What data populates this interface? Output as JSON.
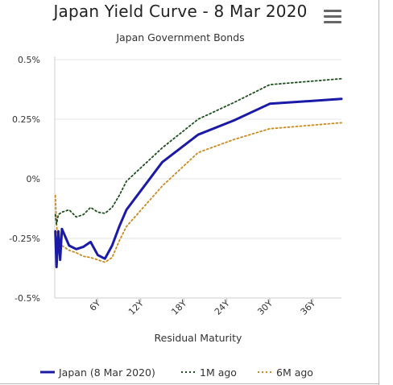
{
  "menu_icon": "hamburger-menu-icon",
  "chart_data": {
    "type": "line",
    "title": "Japan Yield Curve - 8 Mar 2020",
    "subtitle": "Japan Government Bonds",
    "xlabel": "Residual Maturity",
    "ylabel": "",
    "x_unit": "years",
    "xlim": [
      0,
      40
    ],
    "ylim": [
      -0.5,
      0.5
    ],
    "y_ticks": [
      {
        "value": 0.5,
        "label": "0.5%"
      },
      {
        "value": 0.25,
        "label": "0.25%"
      },
      {
        "value": 0,
        "label": "0%"
      },
      {
        "value": -0.25,
        "label": "-0.25%"
      },
      {
        "value": -0.5,
        "label": "-0.5%"
      }
    ],
    "x_ticks": [
      {
        "value": 6,
        "label": "6Y"
      },
      {
        "value": 12,
        "label": "12Y"
      },
      {
        "value": 18,
        "label": "18Y"
      },
      {
        "value": 24,
        "label": "24Y"
      },
      {
        "value": 30,
        "label": "30Y"
      },
      {
        "value": 36,
        "label": "36Y"
      }
    ],
    "grid": "horizontal",
    "legend": "bottom",
    "series": [
      {
        "name": "Japan (8 Mar 2020)",
        "color": "#1a1aa6",
        "style": "solid",
        "points": [
          [
            0.08,
            -0.22
          ],
          [
            0.25,
            -0.37
          ],
          [
            0.5,
            -0.22
          ],
          [
            0.75,
            -0.34
          ],
          [
            1,
            -0.21
          ],
          [
            2,
            -0.28
          ],
          [
            3,
            -0.295
          ],
          [
            4,
            -0.285
          ],
          [
            5,
            -0.265
          ],
          [
            6,
            -0.32
          ],
          [
            7,
            -0.335
          ],
          [
            8,
            -0.28
          ],
          [
            9,
            -0.2
          ],
          [
            10,
            -0.13
          ],
          [
            15,
            0.07
          ],
          [
            20,
            0.185
          ],
          [
            25,
            0.245
          ],
          [
            30,
            0.315
          ],
          [
            40,
            0.335
          ]
        ]
      },
      {
        "name": "1M ago",
        "color": "#1e4f1e",
        "style": "dotted",
        "points": [
          [
            0.08,
            -0.15
          ],
          [
            0.25,
            -0.19
          ],
          [
            0.5,
            -0.15
          ],
          [
            1,
            -0.14
          ],
          [
            2,
            -0.13
          ],
          [
            3,
            -0.16
          ],
          [
            4,
            -0.15
          ],
          [
            5,
            -0.12
          ],
          [
            6,
            -0.14
          ],
          [
            7,
            -0.145
          ],
          [
            8,
            -0.12
          ],
          [
            9,
            -0.07
          ],
          [
            10,
            -0.01
          ],
          [
            15,
            0.13
          ],
          [
            20,
            0.25
          ],
          [
            25,
            0.32
          ],
          [
            30,
            0.395
          ],
          [
            40,
            0.42
          ]
        ]
      },
      {
        "name": "6M ago",
        "color": "#cc8a1e",
        "style": "dotted",
        "points": [
          [
            0.08,
            -0.07
          ],
          [
            0.25,
            -0.19
          ],
          [
            0.5,
            -0.27
          ],
          [
            1,
            -0.28
          ],
          [
            2,
            -0.3
          ],
          [
            3,
            -0.31
          ],
          [
            4,
            -0.325
          ],
          [
            5,
            -0.33
          ],
          [
            6,
            -0.34
          ],
          [
            7,
            -0.35
          ],
          [
            8,
            -0.33
          ],
          [
            9,
            -0.26
          ],
          [
            10,
            -0.2
          ],
          [
            15,
            -0.03
          ],
          [
            20,
            0.11
          ],
          [
            25,
            0.165
          ],
          [
            30,
            0.21
          ],
          [
            40,
            0.235
          ]
        ]
      }
    ]
  }
}
